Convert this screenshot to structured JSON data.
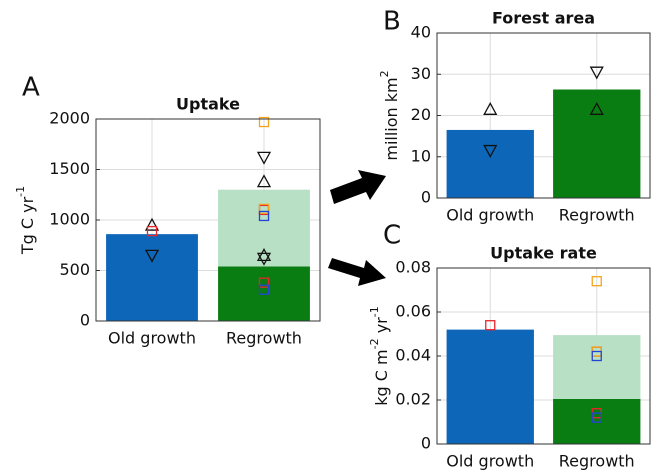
{
  "chart_data": [
    {
      "type": "bar",
      "panel_label": "A",
      "title": "Uptake",
      "y_label": [
        "Tg C yr",
        "-1"
      ],
      "categories": [
        "Old growth",
        "Regrowth"
      ],
      "ylim": [
        0,
        2000
      ],
      "yticks": [
        0,
        500,
        1000,
        1500,
        2000
      ],
      "grid": true,
      "series": [
        {
          "color": "#0d66b8",
          "values": [
            860,
            null
          ]
        },
        {
          "color": "#0a7d12",
          "values": [
            null,
            540
          ]
        },
        {
          "color": "#b7e0c4",
          "values": [
            null,
            760
          ]
        }
      ],
      "markers": [
        {
          "shape": "triangle-up",
          "color": "#111",
          "values": [
            950,
            1380
          ]
        },
        {
          "shape": "triangle-down",
          "color": "#111",
          "values": [
            650,
            1620
          ]
        },
        {
          "shape": "square",
          "color": "#e8262b",
          "values": [
            890,
            1100
          ]
        },
        {
          "shape": "square",
          "color": "#f2a51c",
          "values": [
            null,
            1970
          ]
        },
        {
          "shape": "square",
          "color": "#f2a51c",
          "values": [
            null,
            1110
          ]
        },
        {
          "shape": "square",
          "color": "#2344d8",
          "values": [
            null,
            1040
          ]
        },
        {
          "shape": "triangle-up",
          "color": "#111",
          "values": [
            null,
            650
          ]
        },
        {
          "shape": "triangle-down",
          "color": "#111",
          "values": [
            null,
            620
          ]
        },
        {
          "shape": "square",
          "color": "#e8262b",
          "values": [
            null,
            380
          ]
        },
        {
          "shape": "square",
          "color": "#2344d8",
          "values": [
            null,
            310
          ]
        }
      ]
    },
    {
      "type": "bar",
      "panel_label": "B",
      "title": "Forest area",
      "y_label": [
        "million km",
        "2"
      ],
      "categories": [
        "Old growth",
        "Regrowth"
      ],
      "ylim": [
        0,
        40
      ],
      "yticks": [
        0,
        10,
        20,
        30,
        40
      ],
      "grid": true,
      "series": [
        {
          "color": "#0d66b8",
          "values": [
            16.5,
            null
          ]
        },
        {
          "color": "#0a7d12",
          "values": [
            null,
            26.3
          ]
        }
      ],
      "markers": [
        {
          "shape": "triangle-up",
          "color": "#111",
          "values": [
            21.5,
            21.5
          ]
        },
        {
          "shape": "triangle-down",
          "color": "#111",
          "values": [
            11.5,
            30.5
          ]
        }
      ]
    },
    {
      "type": "bar",
      "panel_label": "C",
      "title": "Uptake rate",
      "y_label": [
        "kg C m",
        "-2",
        " yr",
        "-1"
      ],
      "categories": [
        "Old growth",
        "Regrowth"
      ],
      "ylim": [
        0,
        0.08
      ],
      "yticks": [
        0,
        0.02,
        0.04,
        0.06,
        0.08
      ],
      "grid": true,
      "series": [
        {
          "color": "#0d66b8",
          "values": [
            0.052,
            null
          ]
        },
        {
          "color": "#0a7d12",
          "values": [
            null,
            0.0205
          ]
        },
        {
          "color": "#b7e0c4",
          "values": [
            null,
            0.029
          ]
        }
      ],
      "markers": [
        {
          "shape": "square",
          "color": "#e8262b",
          "values": [
            0.054,
            0.042
          ]
        },
        {
          "shape": "square",
          "color": "#f2a51c",
          "values": [
            null,
            0.074
          ]
        },
        {
          "shape": "square",
          "color": "#f2a51c",
          "values": [
            null,
            0.042
          ]
        },
        {
          "shape": "square",
          "color": "#2344d8",
          "values": [
            null,
            0.04
          ]
        },
        {
          "shape": "square",
          "color": "#e8262b",
          "values": [
            null,
            0.014
          ]
        },
        {
          "shape": "square",
          "color": "#2344d8",
          "values": [
            null,
            0.012
          ]
        }
      ]
    }
  ]
}
